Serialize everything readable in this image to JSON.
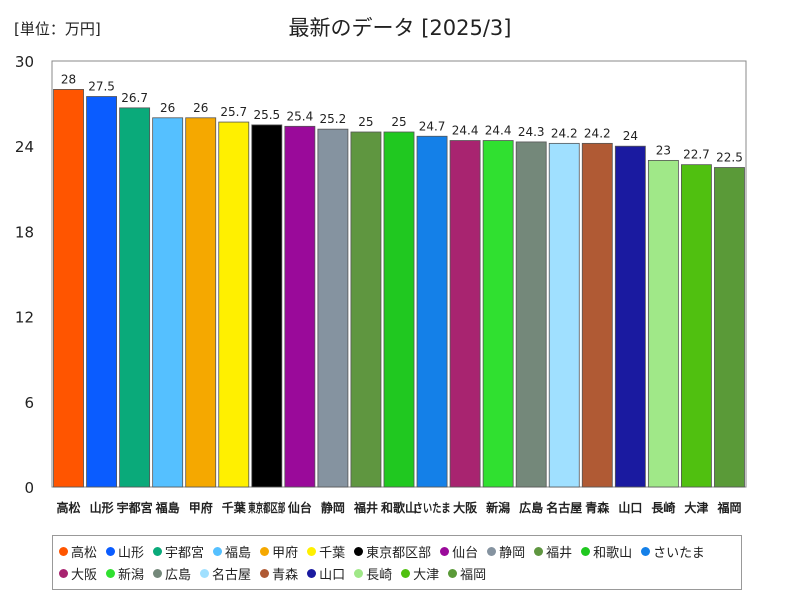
{
  "unit_label": "[単位：万円]",
  "chart_data": {
    "type": "bar",
    "title": "最新のデータ [2025/3]",
    "ylim": [
      0,
      30
    ],
    "yticks": [
      0,
      6,
      12,
      18,
      24,
      30
    ],
    "grid": false,
    "legend_position": "bottom",
    "categories": [
      "高松",
      "山形",
      "宇都宮",
      "福島",
      "甲府",
      "千葉",
      "東京都区部",
      "仙台",
      "静岡",
      "福井",
      "和歌山",
      "さいたま",
      "大阪",
      "新潟",
      "広島",
      "名古屋",
      "青森",
      "山口",
      "長崎",
      "大津",
      "福岡"
    ],
    "values": [
      28,
      27.5,
      26.7,
      26,
      26,
      25.7,
      25.5,
      25.4,
      25.2,
      25,
      25,
      24.7,
      24.4,
      24.4,
      24.3,
      24.2,
      24.2,
      24,
      23,
      22.7,
      22.5
    ],
    "value_labels": [
      "28",
      "27.5",
      "26.7",
      "26",
      "26",
      "25.7",
      "25.5",
      "25.4",
      "25.2",
      "25",
      "25",
      "24.7",
      "24.4",
      "24.4",
      "24.3",
      "24.2",
      "24.2",
      "24",
      "23",
      "22.7",
      "22.5"
    ],
    "colors": [
      "#ff5500",
      "#0a5cff",
      "#0aaa7a",
      "#55c0ff",
      "#f5a800",
      "#fff000",
      "#000000",
      "#9a0a9a",
      "#8593a0",
      "#5f9640",
      "#20c820",
      "#1480e8",
      "#a82470",
      "#30e030",
      "#74887a",
      "#a0e0ff",
      "#b05a34",
      "#1a1aa0",
      "#a0e888",
      "#50c010",
      "#5a9a38"
    ]
  }
}
